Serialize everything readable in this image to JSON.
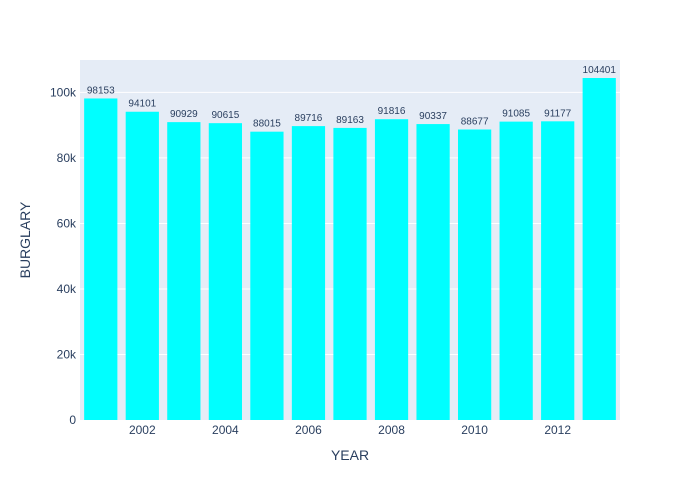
{
  "chart_data": {
    "type": "bar",
    "categories": [
      2001,
      2002,
      2003,
      2004,
      2005,
      2006,
      2007,
      2008,
      2009,
      2010,
      2011,
      2012,
      2013
    ],
    "values": [
      98153,
      94101,
      90929,
      90615,
      88015,
      89716,
      89163,
      91816,
      90337,
      88677,
      91085,
      91177,
      104401
    ],
    "data_labels": [
      "98153",
      "94101",
      "90929",
      "90615",
      "88015",
      "89716",
      "89163",
      "91816",
      "90337",
      "88677",
      "91085",
      "91177",
      "104401"
    ],
    "title": "",
    "xlabel": "YEAR",
    "ylabel": "BURGLARY",
    "xlim": [
      2000.5,
      2013.5
    ],
    "ylim": [
      0,
      109896
    ],
    "x_ticks": [
      2002,
      2004,
      2006,
      2008,
      2010,
      2012
    ],
    "x_tick_labels": [
      "2002",
      "2004",
      "2006",
      "2008",
      "2010",
      "2012"
    ],
    "y_ticks": [
      0,
      20000,
      40000,
      60000,
      80000,
      100000
    ],
    "y_tick_labels": [
      "0",
      "20k",
      "40k",
      "60k",
      "80k",
      "100k"
    ],
    "grid": true,
    "legend": "none",
    "colors": {
      "bar": "#00ffff",
      "plot_background": "#e5ecf6",
      "gridline": "#ffffff",
      "text": "#2a3f5f"
    }
  }
}
